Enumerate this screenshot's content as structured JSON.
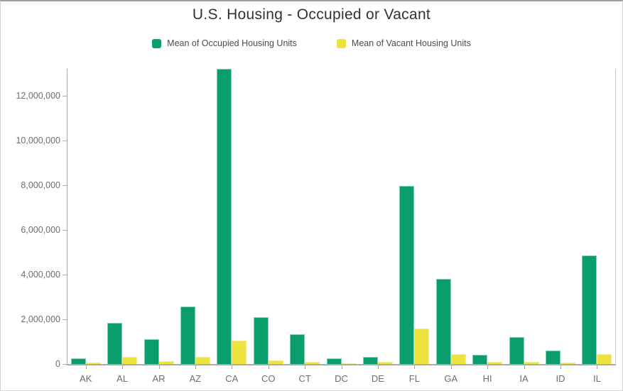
{
  "chart_data": {
    "type": "bar",
    "title": "U.S. Housing - Occupied or Vacant",
    "categories": [
      "AK",
      "AL",
      "AR",
      "AZ",
      "CA",
      "CO",
      "CT",
      "DC",
      "DE",
      "FL",
      "GA",
      "HI",
      "IA",
      "ID",
      "IL"
    ],
    "series": [
      {
        "name": "Mean of Occupied Housing Units",
        "color": "#0a9e6f",
        "values": [
          240000,
          1840000,
          1100000,
          2570000,
          13200000,
          2080000,
          1340000,
          260000,
          330000,
          7980000,
          3800000,
          400000,
          1220000,
          600000,
          4850000
        ]
      },
      {
        "name": "Mean of Vacant Housing Units",
        "color": "#ede23e",
        "values": [
          60000,
          330000,
          130000,
          330000,
          1050000,
          150000,
          90000,
          30000,
          90000,
          1580000,
          430000,
          80000,
          100000,
          60000,
          460000
        ]
      }
    ],
    "xlabel": "",
    "ylabel": "",
    "ylim": [
      0,
      13270000
    ],
    "y_ticks": [
      {
        "value": 0,
        "label": "0"
      },
      {
        "value": 2000000,
        "label": "2,000,000"
      },
      {
        "value": 4000000,
        "label": "4,000,000"
      },
      {
        "value": 6000000,
        "label": "6,000,000"
      },
      {
        "value": 8000000,
        "label": "8,000,000"
      },
      {
        "value": 10000000,
        "label": "10,000,000"
      },
      {
        "value": 12000000,
        "label": "12,000,000"
      }
    ],
    "legend_position": "top",
    "grid": false
  }
}
